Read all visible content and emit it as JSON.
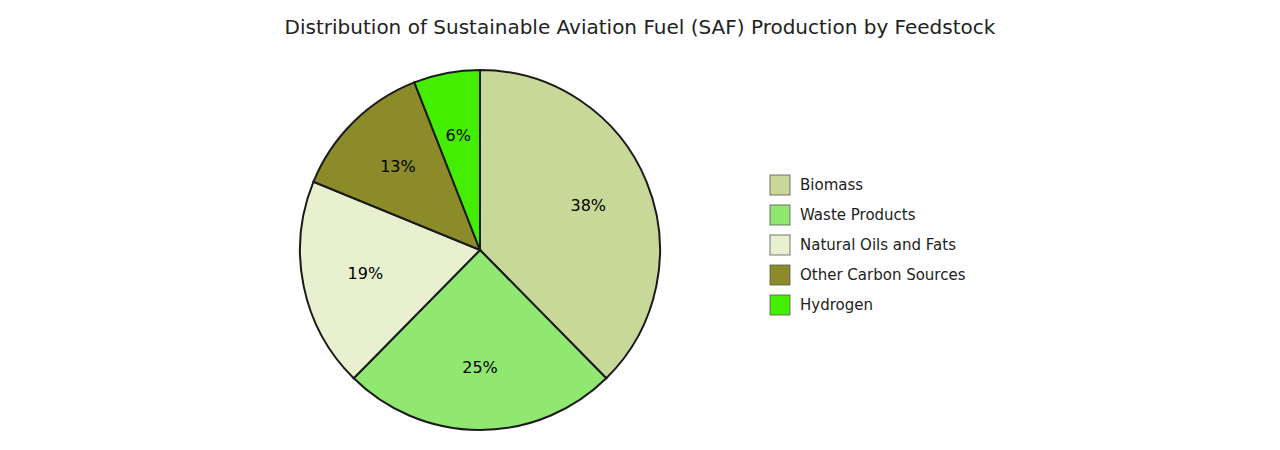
{
  "chart_data": {
    "type": "pie",
    "title": "Distribution of Sustainable Aviation Fuel (SAF) Production by Feedstock",
    "categories": [
      "Biomass",
      "Waste Products",
      "Natural Oils and Fats",
      "Other Carbon Sources",
      "Hydrogen"
    ],
    "values": [
      38,
      25,
      19,
      13,
      6
    ],
    "value_labels": [
      "38%",
      "25%",
      "19%",
      "13%",
      "6%"
    ],
    "colors": [
      "#c8d898",
      "#90e870",
      "#e8f0d0",
      "#8b8b2a",
      "#44ee00"
    ],
    "data_labels": true,
    "legend": "right"
  }
}
